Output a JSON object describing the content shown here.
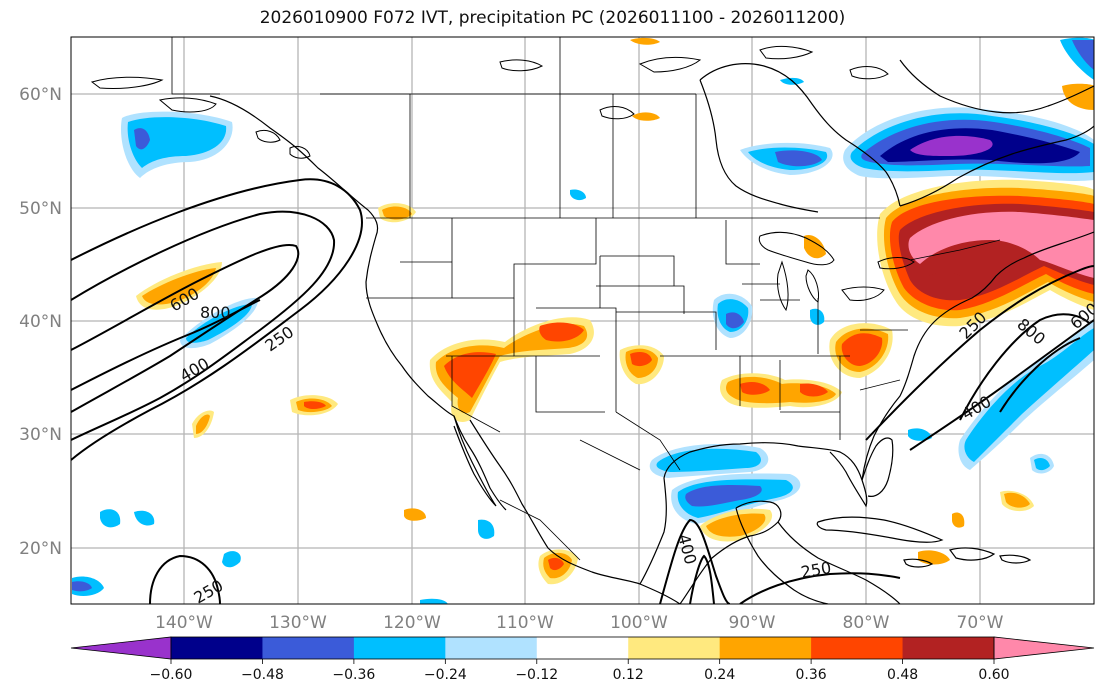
{
  "title": "2026010900 F072 IVT, precipitation PC (2026011100 - 2026011200)",
  "lat_labels": [
    "60°N",
    "50°N",
    "40°N",
    "30°N",
    "20°N"
  ],
  "lon_labels": [
    "140°W",
    "130°W",
    "120°W",
    "110°W",
    "100°W",
    "90°W",
    "80°W",
    "70°W"
  ],
  "contour_labels": [
    "600",
    "800",
    "400",
    "250",
    "250",
    "800",
    "600",
    "400",
    "250",
    "250",
    "400"
  ],
  "colorbar": {
    "tick_labels": [
      "−0.60",
      "−0.48",
      "−0.36",
      "−0.24",
      "−0.12",
      "0.12",
      "0.24",
      "0.36",
      "0.48",
      "0.60"
    ],
    "colors": [
      "#9932cc",
      "#00008b",
      "#3b5bd9",
      "#00bfff",
      "#b0e2ff",
      "#ffffff",
      "#ffe97f",
      "#ffa500",
      "#ff4500",
      "#b22222",
      "#ff88aa"
    ]
  }
}
